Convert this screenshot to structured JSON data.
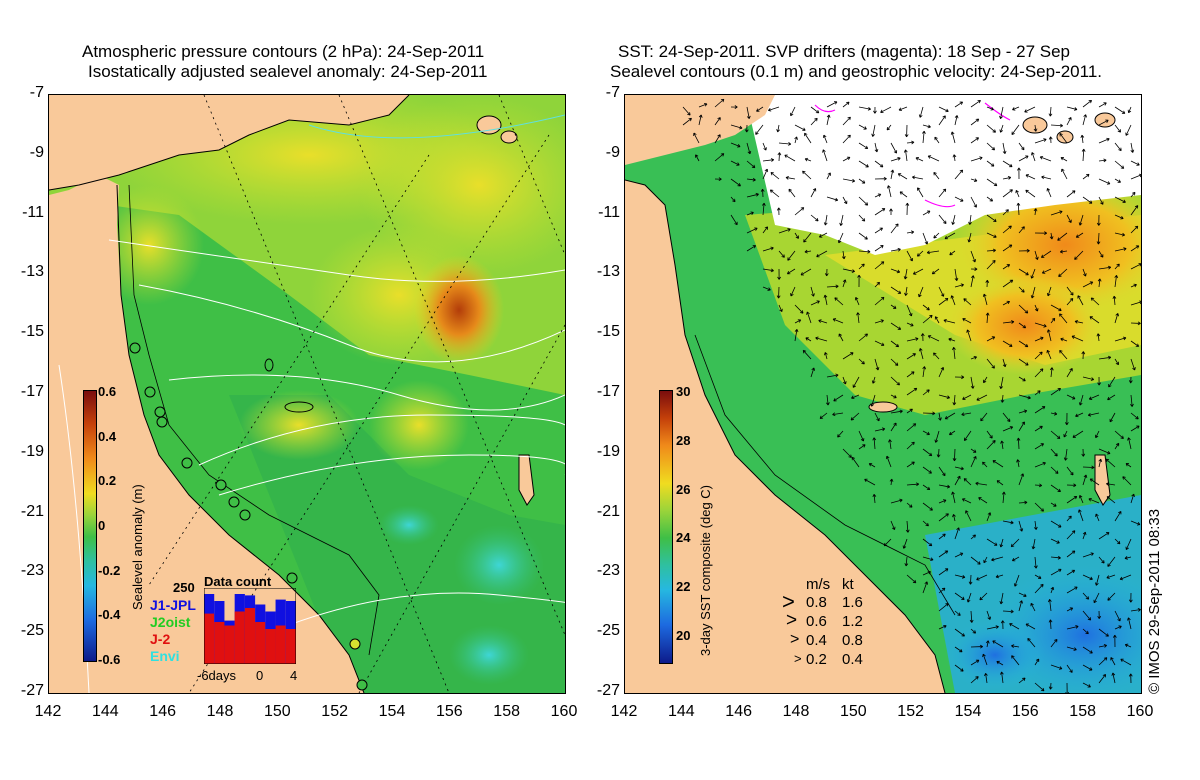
{
  "left_panel": {
    "title_line1": "Atmospheric pressure contours (2 hPa): 24-Sep-2011",
    "title_line2": "Isostatically adjusted sealevel anomaly: 24-Sep-2011",
    "colorbar": {
      "label": "Sealevel anomaly (m)",
      "ticks": [
        "0.6",
        "0.4",
        "0.2",
        "0",
        "-0.2",
        "-0.4",
        "-0.6"
      ],
      "min": -0.6,
      "max": 0.6
    },
    "data_count": {
      "title": "Data count",
      "ymax_label": "250",
      "missions": [
        {
          "name": "J1-JPL",
          "color": "#1010e0"
        },
        {
          "name": "J2oist",
          "color": "#22cc22"
        },
        {
          "name": "J-2",
          "color": "#e01010"
        },
        {
          "name": "Envi",
          "color": "#30e0e0"
        }
      ],
      "x_labels": [
        "-6days",
        "0",
        "4"
      ],
      "bars_red": [
        0.72,
        0.6,
        0.55,
        0.75,
        0.8,
        0.6,
        0.5,
        0.55,
        0.5
      ],
      "bars_total": [
        1.0,
        0.9,
        0.62,
        1.0,
        0.98,
        0.85,
        0.75,
        0.92,
        0.9
      ]
    }
  },
  "right_panel": {
    "title_line1": "SST: 24-Sep-2011. SVP drifters (magenta): 18 Sep - 27 Sep",
    "title_line2": "Sealevel contours (0.1 m) and geostrophic velocity: 24-Sep-2011.",
    "colorbar": {
      "label": "3-day SST composite (deg C)",
      "ticks": [
        "30",
        "28",
        "26",
        "24",
        "22",
        "20"
      ],
      "min": 19,
      "max": 30
    },
    "velocity_legend": {
      "header_ms": "m/s",
      "header_kt": "kt",
      "rows": [
        {
          "ms": "0.8",
          "kt": "1.6"
        },
        {
          "ms": "0.6",
          "kt": "1.2"
        },
        {
          "ms": "0.4",
          "kt": "0.8"
        },
        {
          "ms": "0.2",
          "kt": "0.4"
        }
      ]
    }
  },
  "axes": {
    "lat_ticks": [
      "-7",
      "-9",
      "-11",
      "-13",
      "-15",
      "-17",
      "-19",
      "-21",
      "-23",
      "-25",
      "-27"
    ],
    "lon_ticks": [
      "142",
      "144",
      "146",
      "148",
      "150",
      "152",
      "154",
      "156",
      "158",
      "160"
    ],
    "lat_range": [
      -27,
      -7
    ],
    "lon_range": [
      142,
      160
    ]
  },
  "copyright": "© IMOS 29-Sep-2011 08:33",
  "colors": {
    "land": "#f9c99a",
    "drifter": "#ff00ff"
  }
}
